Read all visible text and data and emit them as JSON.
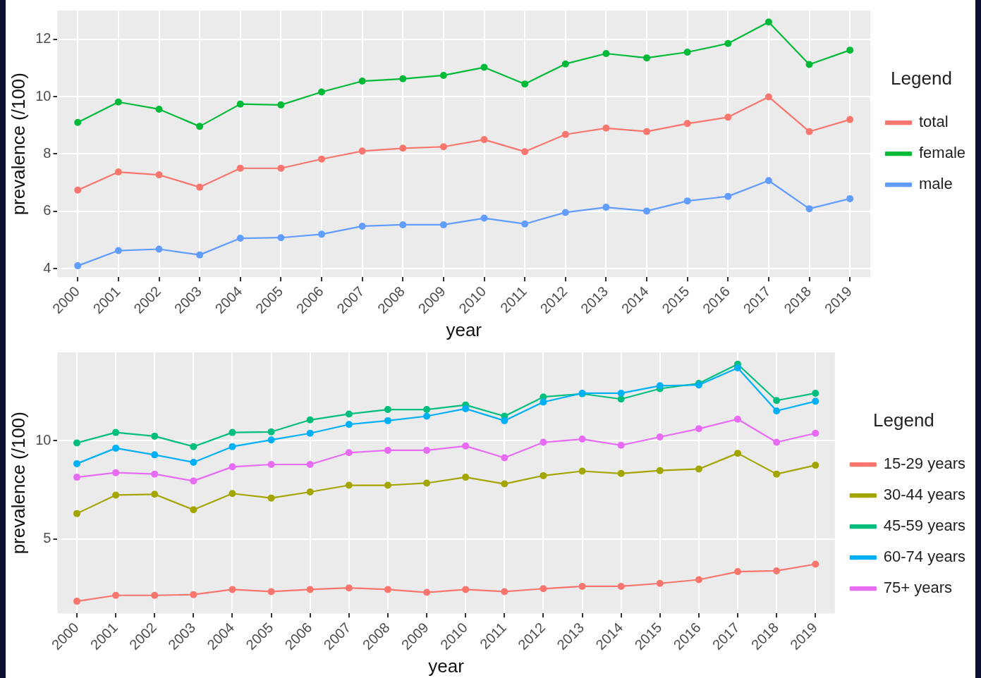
{
  "chart_data": [
    {
      "type": "line",
      "xlabel": "year",
      "ylabel": "prevalence (/100)",
      "legend_title": "Legend",
      "legend": "right",
      "grid": true,
      "marker": "circle",
      "line_style": "solid",
      "ylim": [
        3.7,
        13.0
      ],
      "yticks": [
        4,
        6,
        8,
        10,
        12
      ],
      "categories": [
        "2000",
        "2001",
        "2002",
        "2003",
        "2004",
        "2005",
        "2006",
        "2007",
        "2008",
        "2009",
        "2010",
        "2011",
        "2012",
        "2013",
        "2014",
        "2015",
        "2016",
        "2017",
        "2018",
        "2019"
      ],
      "series": [
        {
          "name": "total",
          "color": "#f8766d",
          "values": [
            6.74,
            7.37,
            7.27,
            6.84,
            7.5,
            7.5,
            7.82,
            8.1,
            8.2,
            8.25,
            8.5,
            8.08,
            8.68,
            8.9,
            8.78,
            9.06,
            9.28,
            9.99,
            8.78,
            9.2
          ]
        },
        {
          "name": "female",
          "color": "#00ba38",
          "values": [
            9.1,
            9.81,
            9.56,
            8.96,
            9.74,
            9.71,
            10.16,
            10.54,
            10.62,
            10.74,
            11.02,
            10.44,
            11.14,
            11.5,
            11.35,
            11.55,
            11.85,
            12.6,
            11.12,
            11.62
          ]
        },
        {
          "name": "male",
          "color": "#619cff",
          "values": [
            4.1,
            4.63,
            4.68,
            4.48,
            5.06,
            5.08,
            5.2,
            5.48,
            5.53,
            5.53,
            5.76,
            5.56,
            5.96,
            6.14,
            6.01,
            6.36,
            6.52,
            7.07,
            6.09,
            6.44
          ]
        }
      ]
    },
    {
      "type": "line",
      "xlabel": "year",
      "ylabel": "prevalence (/100)",
      "legend_title": "Legend",
      "legend": "right",
      "grid": true,
      "marker": "circle",
      "line_style": "solid",
      "ylim": [
        1.2,
        14.5
      ],
      "yticks": [
        5,
        10
      ],
      "categories": [
        "2000",
        "2001",
        "2002",
        "2003",
        "2004",
        "2005",
        "2006",
        "2007",
        "2008",
        "2009",
        "2010",
        "2011",
        "2012",
        "2013",
        "2014",
        "2015",
        "2016",
        "2017",
        "2018",
        "2019"
      ],
      "series": [
        {
          "name": "15-29 years",
          "color": "#f8766d",
          "values": [
            1.82,
            2.12,
            2.12,
            2.16,
            2.42,
            2.31,
            2.42,
            2.5,
            2.42,
            2.27,
            2.42,
            2.31,
            2.46,
            2.58,
            2.58,
            2.73,
            2.92,
            3.33,
            3.37,
            3.71
          ]
        },
        {
          "name": "30-44 years",
          "color": "#a3a500",
          "values": [
            6.29,
            7.23,
            7.27,
            6.48,
            7.31,
            7.08,
            7.39,
            7.73,
            7.73,
            7.84,
            8.14,
            7.8,
            8.22,
            8.45,
            8.33,
            8.48,
            8.56,
            9.36,
            8.3,
            8.75
          ]
        },
        {
          "name": "45-59 years",
          "color": "#00bf7d",
          "values": [
            9.89,
            10.42,
            10.23,
            9.7,
            10.42,
            10.45,
            11.06,
            11.36,
            11.59,
            11.59,
            11.82,
            11.25,
            12.23,
            12.39,
            12.12,
            12.65,
            12.92,
            13.9,
            12.05,
            12.42
          ]
        },
        {
          "name": "60-74 years",
          "color": "#00b0f6",
          "values": [
            8.83,
            9.62,
            9.28,
            8.9,
            9.7,
            10.04,
            10.38,
            10.83,
            11.02,
            11.25,
            11.63,
            11.02,
            11.97,
            12.42,
            12.42,
            12.8,
            12.84,
            13.71,
            11.52,
            12.01
          ]
        },
        {
          "name": "75+ years",
          "color": "#e76bf3",
          "values": [
            8.14,
            8.37,
            8.3,
            7.95,
            8.67,
            8.79,
            8.79,
            9.39,
            9.51,
            9.51,
            9.73,
            9.13,
            9.92,
            10.08,
            9.77,
            10.19,
            10.61,
            11.1,
            9.92,
            10.38
          ]
        }
      ]
    }
  ]
}
